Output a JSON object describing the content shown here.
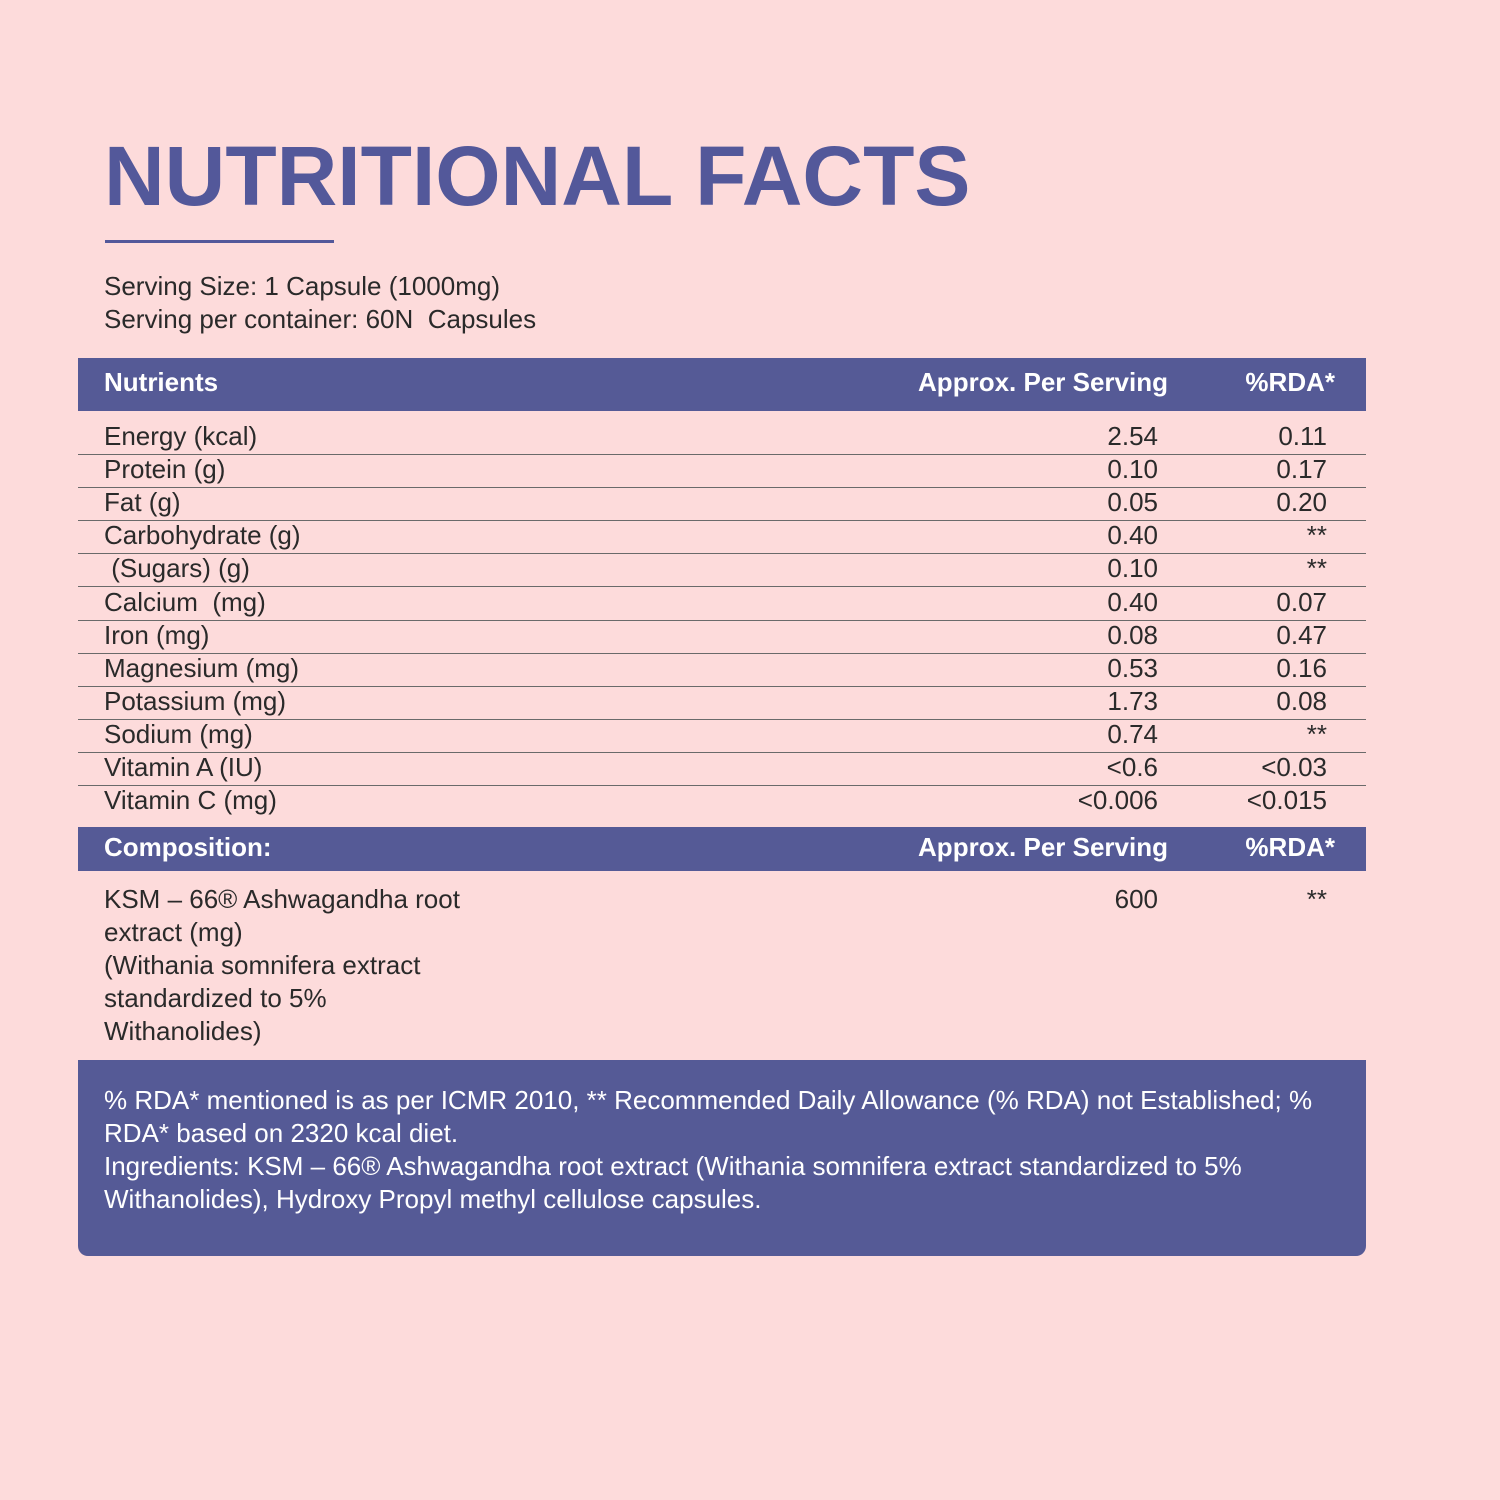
{
  "title": "NUTRITIONAL FACTS",
  "serving": [
    "Serving Size: 1 Capsule (1000mg)",
    "Serving per container: 60N  Capsules"
  ],
  "table": {
    "header": [
      "Nutrients",
      "Approx. Per Serving",
      "%RDA*"
    ],
    "rows": [
      [
        "Energy (kcal)",
        "2.54",
        "0.11"
      ],
      [
        "Protein (g)",
        "0.10",
        "0.17"
      ],
      [
        "Fat (g)",
        "0.05",
        "0.20"
      ],
      [
        "Carbohydrate (g)",
        "0.40",
        "**"
      ],
      [
        " (Sugars) (g)",
        "0.10",
        "**"
      ],
      [
        "Calcium  (mg)",
        "0.40",
        "0.07"
      ],
      [
        "Iron (mg)",
        "0.08",
        "0.47"
      ],
      [
        "Magnesium (mg)",
        "0.53",
        "0.16"
      ],
      [
        "Potassium (mg)",
        "1.73",
        "0.08"
      ],
      [
        "Sodium (mg)",
        "0.74",
        "**"
      ],
      [
        "Vitamin A (IU)",
        "<0.6",
        "<0.03"
      ],
      [
        "Vitamin C (mg)",
        "<0.006",
        "<0.015"
      ]
    ]
  },
  "composition": {
    "header": [
      "Composition:",
      "Approx. Per Serving",
      "%RDA*"
    ],
    "name_lines": [
      "KSM – 66® Ashwagandha root",
      "extract (mg)",
      "(Withania somnifera extract",
      "standardized to 5%",
      "Withanolides)"
    ],
    "amount": "600",
    "rda": "**"
  },
  "footer": [
    "% RDA* mentioned is as per ICMR 2010, ** Recommended Daily Allowance (% RDA) not Established; % RDA* based on 2320 kcal diet.",
    "Ingredients: KSM – 66®  Ashwagandha root extract (Withania somnifera extract standardized to 5% Withanolides), Hydroxy Propyl methyl cellulose capsules."
  ]
}
